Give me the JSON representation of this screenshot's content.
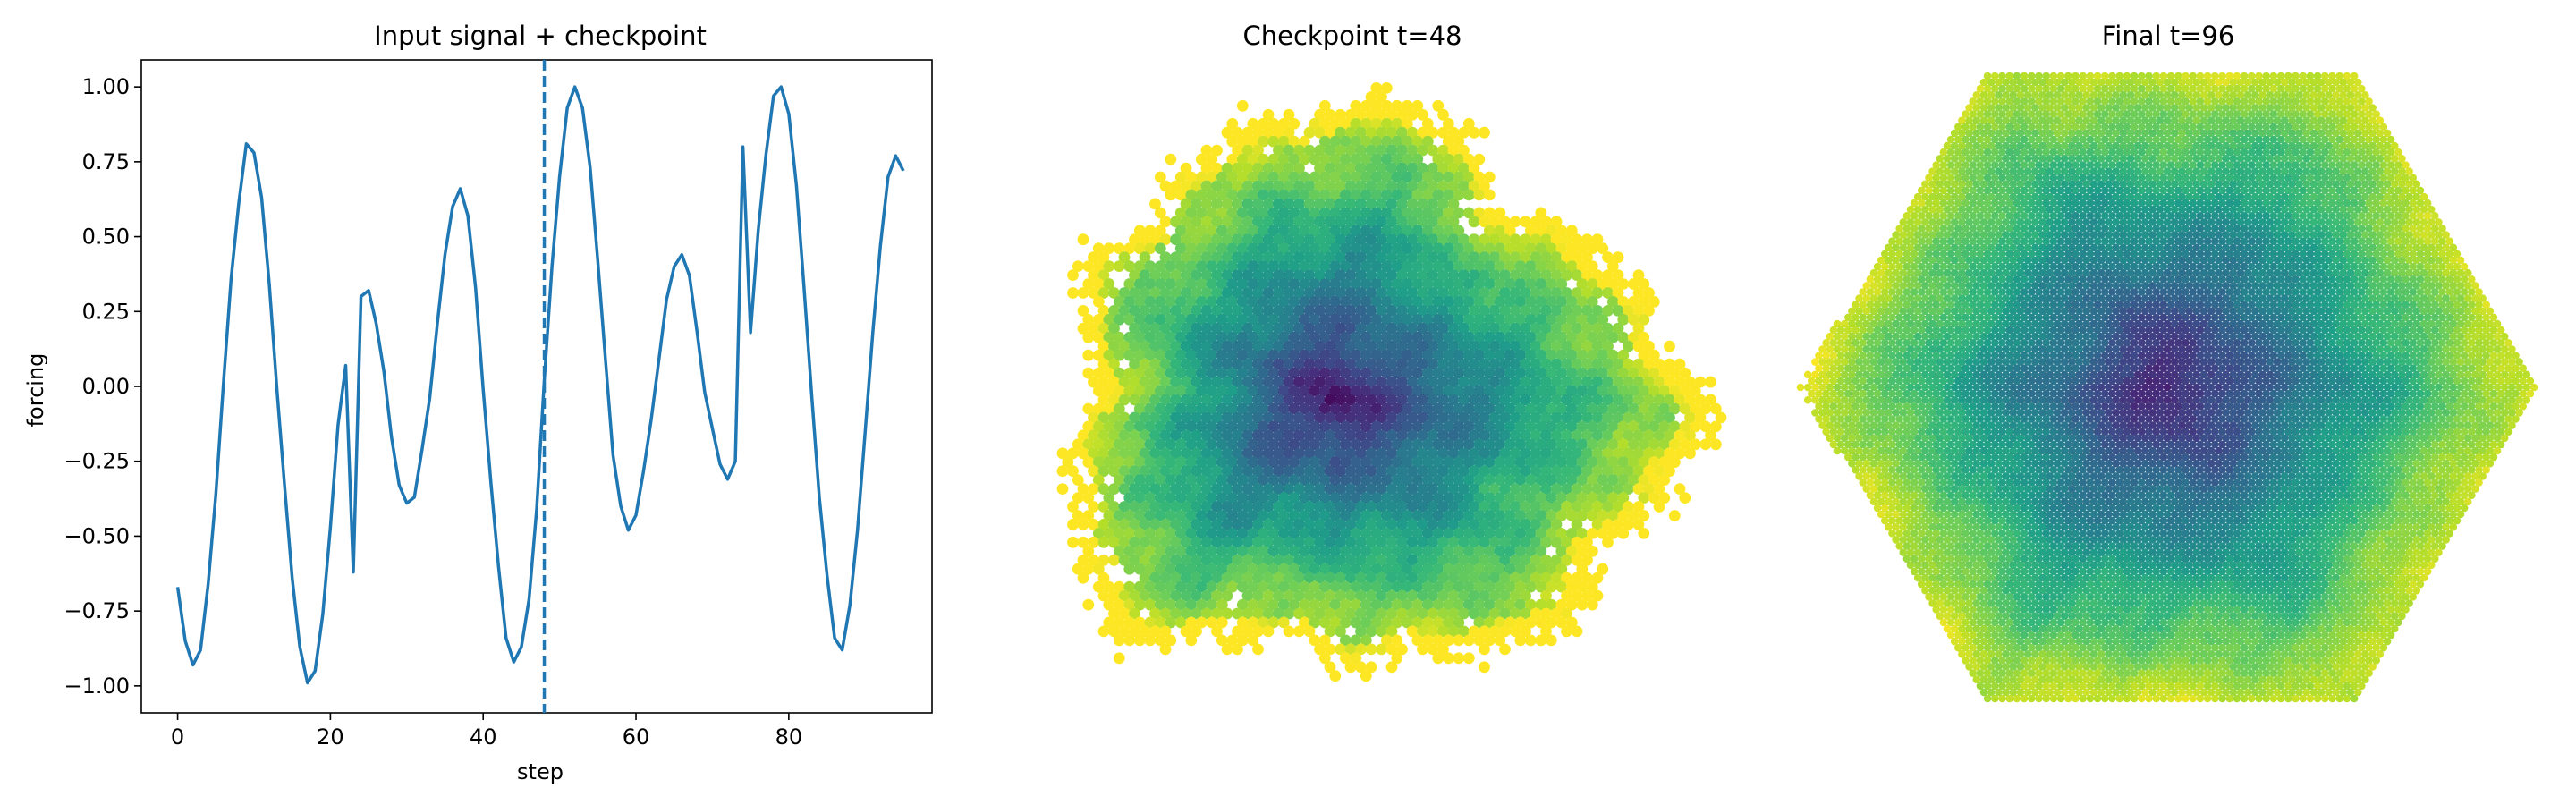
{
  "chart_data": [
    {
      "type": "line",
      "title": "Input signal + checkpoint",
      "xlabel": "step",
      "ylabel": "forcing",
      "xlim": [
        -4.75,
        98.75
      ],
      "ylim": [
        -1.09,
        1.09
      ],
      "xticks": [
        0,
        20,
        40,
        60,
        80
      ],
      "yticks": [
        -1.0,
        -0.75,
        -0.5,
        -0.25,
        0.0,
        0.25,
        0.5,
        0.75,
        1.0
      ],
      "ytick_labels": [
        "−1.00",
        "−0.75",
        "−0.50",
        "−0.25",
        "0.00",
        "0.25",
        "0.50",
        "0.75",
        "1.00"
      ],
      "line_color": "#1f77b4",
      "checkpoint_x": 48,
      "checkpoint_style": "dashed vertical line",
      "series": [
        {
          "x": [
            0,
            1,
            2,
            3,
            4,
            5,
            6,
            7,
            8,
            9,
            10,
            11,
            12,
            13,
            14,
            15,
            16,
            17,
            18,
            19,
            20,
            21,
            22,
            23,
            24,
            25,
            26,
            27,
            28,
            29,
            30,
            31,
            32,
            33,
            34,
            35,
            36,
            37,
            38,
            39,
            40,
            41,
            42,
            43,
            44,
            45,
            46,
            47,
            48,
            49,
            50,
            51,
            52,
            53,
            54,
            55,
            56,
            57,
            58,
            59,
            60,
            61,
            62,
            63,
            64,
            65,
            66,
            67,
            68,
            69,
            70,
            71,
            72,
            73,
            74,
            75,
            76,
            77,
            78,
            79,
            80,
            81,
            82,
            83,
            84,
            85,
            86,
            87,
            88,
            89,
            90,
            91,
            92,
            93,
            94,
            95
          ],
          "y": [
            -0.67,
            -0.85,
            -0.93,
            -0.88,
            -0.66,
            -0.36,
            0.01,
            0.36,
            0.61,
            0.81,
            0.78,
            0.63,
            0.34,
            -0.01,
            -0.33,
            -0.64,
            -0.87,
            -0.99,
            -0.95,
            -0.76,
            -0.47,
            -0.13,
            0.07,
            -0.62,
            0.3,
            0.32,
            0.21,
            0.05,
            -0.17,
            -0.33,
            -0.39,
            -0.37,
            -0.21,
            -0.04,
            0.21,
            0.44,
            0.6,
            0.66,
            0.57,
            0.33,
            -0.01,
            -0.32,
            -0.6,
            -0.84,
            -0.92,
            -0.87,
            -0.71,
            -0.41,
            0.02,
            0.4,
            0.7,
            0.93,
            1.0,
            0.93,
            0.73,
            0.42,
            0.09,
            -0.23,
            -0.4,
            -0.48,
            -0.43,
            -0.28,
            -0.11,
            0.09,
            0.29,
            0.4,
            0.44,
            0.37,
            0.18,
            -0.02,
            -0.14,
            -0.26,
            -0.31,
            -0.25,
            0.8,
            0.18,
            0.52,
            0.77,
            0.97,
            1.0,
            0.91,
            0.67,
            0.33,
            -0.03,
            -0.37,
            -0.63,
            -0.84,
            -0.88,
            -0.73,
            -0.48,
            -0.15,
            0.18,
            0.47,
            0.7,
            0.77,
            0.72
          ]
        }
      ]
    },
    {
      "type": "heatmap",
      "title": "Checkpoint t=48",
      "cell_shape": "hexagonal lattice",
      "colormap": "viridis",
      "pattern": "irregular grown cluster, darkest near center, yellow along ragged edge"
    },
    {
      "type": "heatmap",
      "title": "Final t=96",
      "cell_shape": "hexagonal lattice",
      "colormap": "viridis",
      "pattern": "full hexagon, darkest at center, yellow toward corners"
    }
  ]
}
